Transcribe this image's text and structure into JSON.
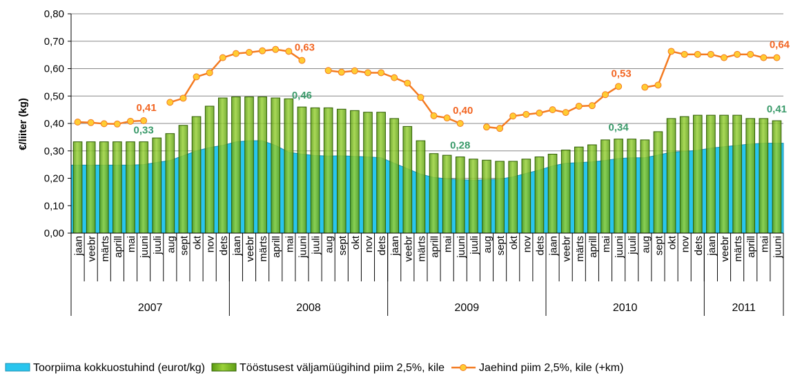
{
  "chart_data": {
    "type": "combo",
    "y_label": "€/liiter (kg)",
    "ylim": [
      0,
      0.8
    ],
    "yticks": [
      {
        "value": 0,
        "label": "0,00"
      },
      {
        "value": 0.1,
        "label": "0,10"
      },
      {
        "value": 0.2,
        "label": "0,20"
      },
      {
        "value": 0.3,
        "label": "0,30"
      },
      {
        "value": 0.4,
        "label": "0,40"
      },
      {
        "value": 0.5,
        "label": "0,50"
      },
      {
        "value": 0.6,
        "label": "0,60"
      },
      {
        "value": 0.7,
        "label": "0,70"
      },
      {
        "value": 0.8,
        "label": "0,80"
      }
    ],
    "grid": true,
    "categories": [
      "jaan",
      "veebr",
      "märts",
      "aprill",
      "mai",
      "juuni",
      "juuli",
      "aug",
      "sept",
      "okt",
      "nov",
      "dets",
      "jaan",
      "veebr",
      "märts",
      "aprill",
      "mai",
      "juuni",
      "juuli",
      "aug",
      "sept",
      "okt",
      "nov",
      "dets",
      "jaan",
      "veebr",
      "märts",
      "aprill",
      "mai",
      "juuni",
      "juuli",
      "aug",
      "sept",
      "okt",
      "nov",
      "dets",
      "jaan",
      "veebr",
      "märts",
      "aprill",
      "mai",
      "juuni",
      "juuli",
      "aug",
      "sept",
      "okt",
      "nov",
      "dets",
      "jaan",
      "veebr",
      "märts",
      "aprill",
      "mai",
      "juuni"
    ],
    "groups": [
      {
        "label": "2007",
        "count": 12
      },
      {
        "label": "2008",
        "count": 12
      },
      {
        "label": "2009",
        "count": 12
      },
      {
        "label": "2010",
        "count": 12
      },
      {
        "label": "2011",
        "count": 6
      }
    ],
    "legend": "bottom",
    "series": [
      {
        "name": "Toorpiima kokkuostuhind (eurot/kg)",
        "type": "area",
        "color": "#29c5ee",
        "values": [
          0.248,
          0.248,
          0.248,
          0.248,
          0.248,
          0.25,
          0.258,
          0.265,
          0.282,
          0.3,
          0.312,
          0.32,
          0.333,
          0.337,
          0.337,
          0.32,
          0.295,
          0.288,
          0.283,
          0.281,
          0.282,
          0.28,
          0.278,
          0.275,
          0.255,
          0.235,
          0.215,
          0.203,
          0.198,
          0.195,
          0.193,
          0.195,
          0.197,
          0.205,
          0.218,
          0.23,
          0.245,
          0.255,
          0.257,
          0.26,
          0.265,
          0.272,
          0.275,
          0.275,
          0.285,
          0.295,
          0.298,
          0.302,
          0.31,
          0.315,
          0.32,
          0.325,
          0.328,
          0.328
        ]
      },
      {
        "name": "Tööstusest väljamüügihind piim 2,5%, kile",
        "type": "bar",
        "color": "#7cc11e",
        "label_color": "#3a9a6a",
        "values": [
          0.333,
          0.333,
          0.333,
          0.333,
          0.333,
          0.333,
          0.347,
          0.363,
          0.393,
          0.425,
          0.463,
          0.493,
          0.497,
          0.497,
          0.497,
          0.493,
          0.49,
          0.46,
          0.457,
          0.457,
          0.452,
          0.447,
          0.441,
          0.441,
          0.418,
          0.389,
          0.337,
          0.29,
          0.284,
          0.278,
          0.27,
          0.266,
          0.262,
          0.262,
          0.27,
          0.278,
          0.288,
          0.303,
          0.314,
          0.322,
          0.34,
          0.343,
          0.343,
          0.34,
          0.37,
          0.418,
          0.425,
          0.43,
          0.43,
          0.43,
          0.43,
          0.418,
          0.418,
          0.41
        ],
        "value_labels": [
          null,
          null,
          null,
          null,
          null,
          "0,33",
          null,
          null,
          null,
          null,
          null,
          null,
          null,
          null,
          null,
          null,
          null,
          "0,46",
          null,
          null,
          null,
          null,
          null,
          null,
          null,
          null,
          null,
          null,
          null,
          "0,28",
          null,
          null,
          null,
          null,
          null,
          null,
          null,
          null,
          null,
          null,
          null,
          "0,34",
          null,
          null,
          null,
          null,
          null,
          null,
          null,
          null,
          null,
          null,
          null,
          "0,41"
        ]
      },
      {
        "name": "Jaehind piim 2,5%, kile (+km)",
        "type": "line",
        "color": "#f47a20",
        "marker_color": "#ffcc33",
        "label_color": "#f26522",
        "values": [
          0.405,
          0.403,
          0.399,
          0.398,
          0.408,
          0.41,
          null,
          0.477,
          0.492,
          0.57,
          0.585,
          0.64,
          0.655,
          0.659,
          0.665,
          0.67,
          0.663,
          0.63,
          null,
          0.593,
          0.587,
          0.592,
          0.585,
          0.585,
          0.567,
          0.547,
          0.495,
          0.428,
          0.42,
          0.4,
          null,
          0.387,
          0.382,
          0.427,
          0.433,
          0.438,
          0.45,
          0.44,
          0.463,
          0.465,
          0.505,
          0.535,
          null,
          0.532,
          0.54,
          0.663,
          0.652,
          0.652,
          0.652,
          0.64,
          0.652,
          0.652,
          0.64,
          0.64
        ],
        "value_labels": [
          null,
          null,
          null,
          null,
          null,
          "0,41",
          null,
          null,
          null,
          null,
          null,
          null,
          null,
          null,
          null,
          null,
          null,
          "0,63",
          null,
          null,
          null,
          null,
          null,
          null,
          null,
          null,
          null,
          null,
          null,
          "0,40",
          null,
          null,
          null,
          null,
          null,
          null,
          null,
          null,
          null,
          null,
          null,
          "0,53",
          null,
          null,
          null,
          null,
          null,
          null,
          null,
          null,
          null,
          null,
          null,
          "0,64"
        ]
      }
    ]
  }
}
